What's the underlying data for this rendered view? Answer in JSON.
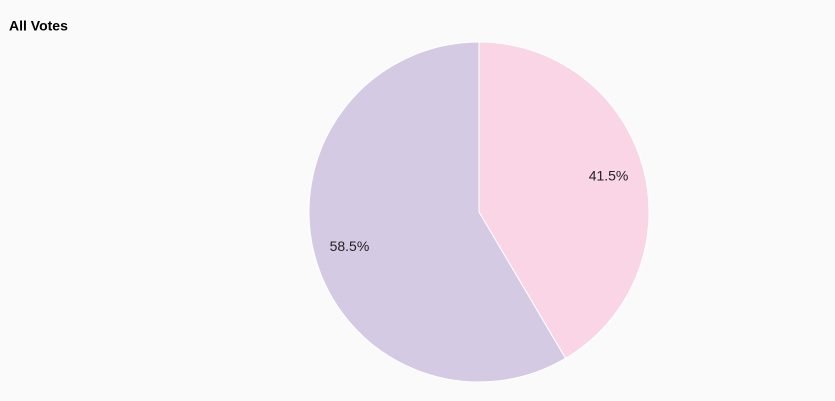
{
  "chart_data": {
    "type": "pie",
    "title": "All Votes",
    "values": [
      41.5,
      58.5
    ],
    "value_labels": [
      "41.5%",
      "58.5%"
    ],
    "colors": [
      "#f9d5e5",
      "#d5cae3"
    ]
  }
}
